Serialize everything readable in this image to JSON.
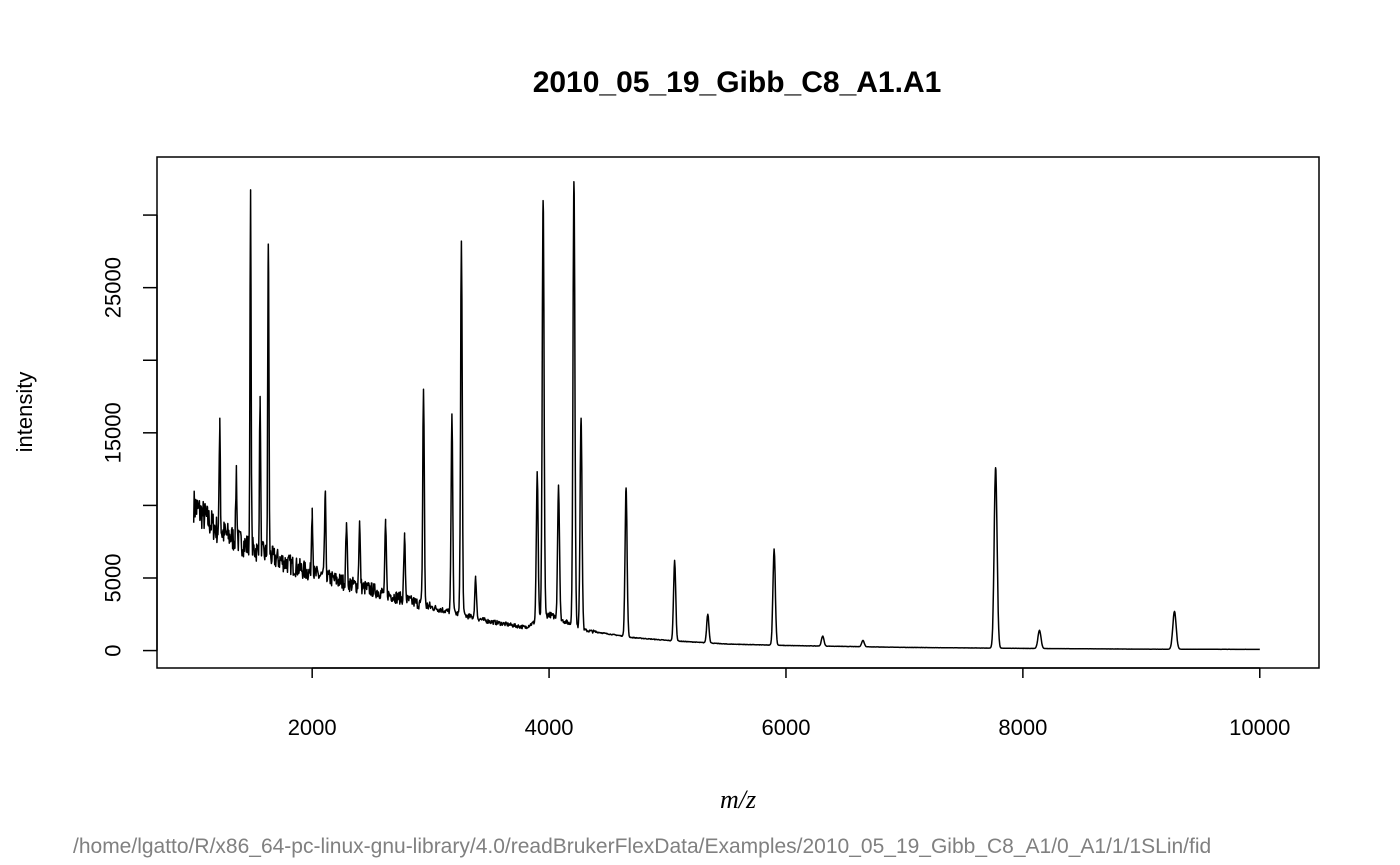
{
  "chart_data": {
    "type": "line",
    "title": "2010_05_19_Gibb_C8_A1.A1",
    "xlabel": "m/z",
    "ylabel": "intensity",
    "xlim": [
      690,
      10500
    ],
    "ylim": [
      -1200,
      34000
    ],
    "x_ticks": [
      2000,
      4000,
      6000,
      8000,
      10000
    ],
    "x_tick_labels": [
      "2000",
      "4000",
      "6000",
      "8000",
      "10000"
    ],
    "y_ticks": [
      0,
      5000,
      15000,
      25000
    ],
    "y_tick_labels": [
      "0",
      "5000",
      "15000",
      "25000"
    ],
    "y_minor_ticks": [
      10000,
      20000,
      30000
    ],
    "baseline": {
      "x": [
        1000,
        1200,
        1500,
        2000,
        2500,
        3000,
        3500,
        3800,
        4000,
        4300,
        4700,
        5000,
        5500,
        6000,
        7000,
        8000,
        9000,
        10000
      ],
      "y": [
        10000,
        8300,
        7000,
        5300,
        4200,
        3000,
        2000,
        1600,
        2500,
        1400,
        900,
        700,
        450,
        350,
        220,
        150,
        100,
        80
      ]
    },
    "peaks": [
      {
        "x": 1220,
        "y": 16000
      },
      {
        "x": 1360,
        "y": 12500
      },
      {
        "x": 1480,
        "y": 31500
      },
      {
        "x": 1560,
        "y": 17500
      },
      {
        "x": 1630,
        "y": 28000
      },
      {
        "x": 2000,
        "y": 9800
      },
      {
        "x": 2110,
        "y": 10800
      },
      {
        "x": 2290,
        "y": 8800
      },
      {
        "x": 2400,
        "y": 8800
      },
      {
        "x": 2620,
        "y": 8600
      },
      {
        "x": 2780,
        "y": 7800
      },
      {
        "x": 2940,
        "y": 18000
      },
      {
        "x": 3180,
        "y": 16300
      },
      {
        "x": 3260,
        "y": 28200
      },
      {
        "x": 3380,
        "y": 5000
      },
      {
        "x": 3900,
        "y": 12200
      },
      {
        "x": 3950,
        "y": 31000
      },
      {
        "x": 4080,
        "y": 11400
      },
      {
        "x": 4210,
        "y": 32300
      },
      {
        "x": 4270,
        "y": 16000
      },
      {
        "x": 4650,
        "y": 11200
      },
      {
        "x": 5060,
        "y": 6200
      },
      {
        "x": 5340,
        "y": 2500
      },
      {
        "x": 5900,
        "y": 7000
      },
      {
        "x": 6310,
        "y": 1000
      },
      {
        "x": 6650,
        "y": 700
      },
      {
        "x": 7770,
        "y": 12600
      },
      {
        "x": 8140,
        "y": 1400
      },
      {
        "x": 9280,
        "y": 2700
      }
    ]
  },
  "footer_path": "/home/lgatto/R/x86_64-pc-linux-gnu-library/4.0/readBrukerFlexData/Examples/2010_05_19_Gibb_C8_A1/0_A1/1/1SLin/fid"
}
